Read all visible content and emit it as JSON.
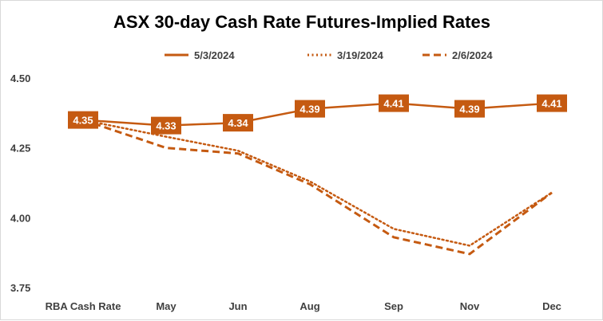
{
  "chart_data": {
    "type": "line",
    "title": "ASX 30-day Cash Rate Futures-Implied Rates",
    "xlabel": "",
    "ylabel": "",
    "categories": [
      "RBA Cash Rate",
      "May",
      "Jun",
      "Aug",
      "Sep",
      "Nov",
      "Dec"
    ],
    "ylim": [
      3.75,
      4.5
    ],
    "yticks": [
      "3.75",
      "4.00",
      "4.25",
      "4.50"
    ],
    "grid": false,
    "legend_position": "top",
    "color": "#C55A11",
    "series": [
      {
        "name": "5/3/2024",
        "style": "solid",
        "values": [
          4.35,
          4.33,
          4.34,
          4.39,
          4.41,
          4.39,
          4.41
        ],
        "data_labels": [
          "4.35",
          "4.33",
          "4.34",
          "4.39",
          "4.41",
          "4.39",
          "4.41"
        ]
      },
      {
        "name": "3/19/2024",
        "style": "dotted",
        "values": [
          4.35,
          4.29,
          4.24,
          4.13,
          3.96,
          3.9,
          4.09
        ]
      },
      {
        "name": "2/6/2024",
        "style": "dashed",
        "values": [
          4.35,
          4.25,
          4.23,
          4.12,
          3.93,
          3.87,
          4.09
        ]
      }
    ]
  }
}
